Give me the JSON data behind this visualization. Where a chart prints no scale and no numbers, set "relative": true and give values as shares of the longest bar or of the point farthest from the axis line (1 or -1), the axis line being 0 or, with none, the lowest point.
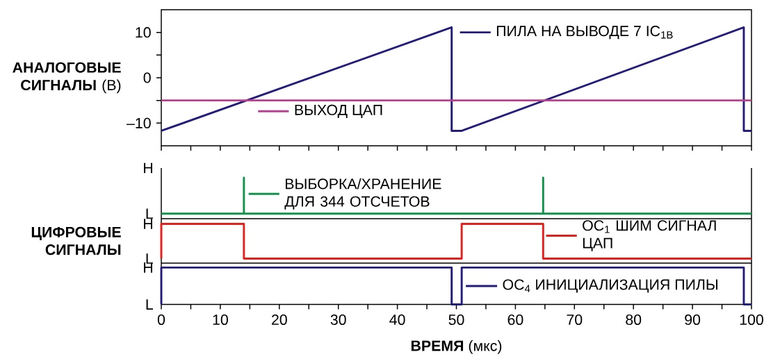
{
  "chart_data": [
    {
      "type": "line",
      "ylabel": "**АНАЛОГОВЫЕ СИГНАЛЫ** (В)",
      "xlim": [
        0,
        100
      ],
      "ylim": [
        -15,
        15
      ],
      "tick_labels": "y",
      "legend": "top right",
      "xticks": [
        0,
        {
          "value": 5,
          "label": null
        },
        10,
        {
          "value": 15,
          "label": null
        },
        20,
        {
          "value": 25,
          "label": null
        },
        30,
        {
          "value": 35,
          "label": null
        },
        40,
        {
          "value": 45,
          "label": null
        },
        50,
        {
          "value": 55,
          "label": null
        },
        60,
        {
          "value": 65,
          "label": null
        },
        70,
        {
          "value": 75,
          "label": null
        },
        80,
        {
          "value": 85,
          "label": null
        },
        90,
        {
          "value": 95,
          "label": null
        },
        100
      ],
      "yticks": [
        {
          "value": -10,
          "label": "–10"
        },
        {
          "value": -5,
          "label": null
        },
        0,
        {
          "value": 5,
          "label": null
        },
        10
      ],
      "series": [
        {
          "name": "ПИЛА НА ВЫВОДЕ 7 IC$_{1B}$",
          "color": "#231c7a",
          "x": [
            0,
            49.2,
            49.2,
            50.9,
            98.7,
            98.7,
            100
          ],
          "values": [
            -11.7,
            11.1,
            -11.7,
            -11.7,
            11.1,
            -11.7,
            -11.7
          ]
        },
        {
          "name": "ВЫХОД ЦАП",
          "color": "#b8418f",
          "x": [
            0,
            100
          ],
          "values": [
            -5,
            -5
          ]
        }
      ]
    },
    {
      "type": "line",
      "relative": true,
      "xlim": [
        0,
        100
      ],
      "tick_labels": false,
      "legend": "top",
      "annotations": [
        "H",
        "L"
      ],
      "series": [
        {
          "name": "ВЫБОРКА/ХРАНЕНИЕ ДЛЯ 344 ОТСЧЕТОВ",
          "color": "#12924a",
          "x": [
            0,
            14.0,
            14.0,
            14.0,
            64.7,
            64.7,
            64.7,
            100
          ],
          "values": [
            0,
            0,
            1,
            0,
            0,
            1,
            0,
            0
          ]
        }
      ]
    },
    {
      "type": "line",
      "relative": true,
      "ylabel": "**ЦИФРОВЫЕ СИГНАЛЫ**",
      "xlim": [
        0,
        100
      ],
      "tick_labels": false,
      "legend": "right",
      "annotations": [
        "H",
        "L"
      ],
      "series": [
        {
          "name": "OC$_{1}$ ШИМ СИГНАЛ ЦАП",
          "color": "#e3211c",
          "x": [
            0,
            0,
            14.0,
            14.0,
            50.9,
            50.9,
            64.7,
            64.7,
            100
          ],
          "values": [
            0,
            1,
            1,
            0,
            0,
            1,
            1,
            0,
            0
          ]
        }
      ]
    },
    {
      "type": "line",
      "relative": true,
      "xlabel": "**ВРЕМЯ** (мкс)",
      "xlim": [
        0,
        100
      ],
      "tick_labels": "x",
      "legend": "bottom right",
      "xticks": [
        0,
        {
          "value": 5,
          "label": null
        },
        10,
        {
          "value": 15,
          "label": null
        },
        20,
        {
          "value": 25,
          "label": null
        },
        30,
        {
          "value": 35,
          "label": null
        },
        40,
        {
          "value": 45,
          "label": null
        },
        50,
        {
          "value": 55,
          "label": null
        },
        60,
        {
          "value": 65,
          "label": null
        },
        70,
        {
          "value": 75,
          "label": null
        },
        80,
        {
          "value": 85,
          "label": null
        },
        90,
        {
          "value": 95,
          "label": null
        },
        100
      ],
      "annotations": [
        "H",
        "L"
      ],
      "series": [
        {
          "name": "OC$_{4}$ ИНИЦИАЛИЗАЦИЯ ПИЛЫ",
          "color": "#231c7a",
          "x": [
            0,
            0,
            49.2,
            49.2,
            50.9,
            50.9,
            98.7,
            98.7,
            100
          ],
          "values": [
            0,
            1,
            1,
            0,
            0,
            1,
            1,
            0,
            0
          ]
        }
      ]
    }
  ]
}
